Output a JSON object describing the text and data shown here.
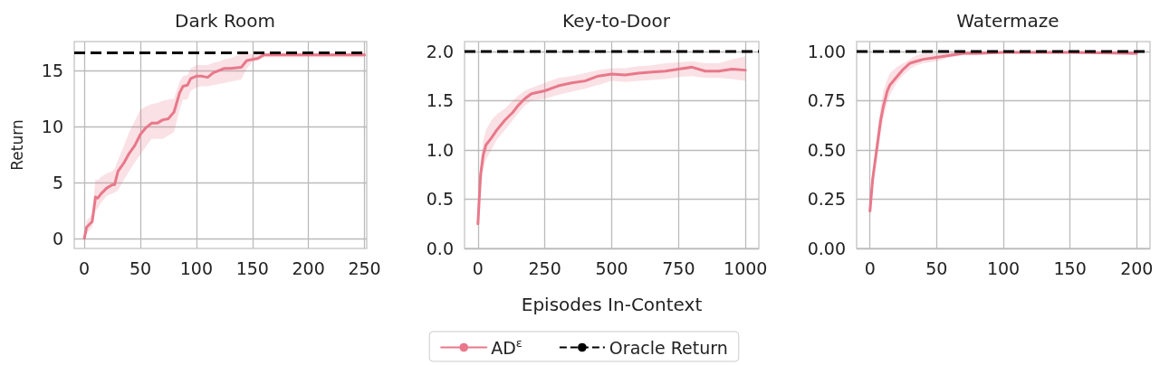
{
  "chart_data": [
    {
      "type": "line",
      "title": "Dark Room",
      "ylabel": "Return",
      "xlim": [
        -9,
        252
      ],
      "xticks": [
        0,
        50,
        100,
        150,
        200,
        250
      ],
      "ylim": [
        -0.9,
        17.6
      ],
      "yticks": [
        0,
        5,
        10,
        15
      ],
      "grid": true,
      "marker": "none",
      "line_style": "solid",
      "series": [
        {
          "color": "#e8788a",
          "x": [
            0,
            2,
            5,
            7,
            10,
            12,
            15,
            20,
            25,
            27,
            30,
            35,
            40,
            45,
            50,
            55,
            60,
            65,
            70,
            75,
            80,
            85,
            88,
            92,
            95,
            100,
            105,
            110,
            115,
            120,
            125,
            130,
            140,
            145,
            150,
            155,
            160,
            170,
            180,
            200,
            220,
            250
          ],
          "values": [
            0,
            1,
            1.3,
            1.5,
            3.7,
            3.6,
            4,
            4.5,
            4.8,
            4.8,
            6,
            6.7,
            7.6,
            8.3,
            9.3,
            9.9,
            10.3,
            10.3,
            10.6,
            10.7,
            11.3,
            13,
            13.6,
            13.7,
            14.3,
            14.5,
            14.5,
            14.4,
            14.8,
            15,
            15.2,
            15.2,
            15.3,
            15.9,
            16,
            16.1,
            16.4,
            16.4,
            16.4,
            16.4,
            16.4,
            16.4
          ],
          "lower": [
            0,
            0.4,
            0.8,
            1,
            2.5,
            2.7,
            3.2,
            3.8,
            4,
            4.1,
            4.3,
            5.2,
            6,
            6.8,
            7.5,
            8.2,
            8.9,
            8.9,
            8.9,
            9.2,
            9.5,
            11.5,
            12.4,
            12.4,
            13.2,
            13.5,
            13.6,
            13.6,
            13.7,
            13.8,
            13.9,
            14,
            14.2,
            15.2,
            15.8,
            15.9,
            16.2,
            16.2,
            16.2,
            16.2,
            16.2,
            16.2
          ],
          "upper": [
            0,
            1.6,
            1.9,
            2.2,
            5.3,
            5.2,
            5.5,
            5.8,
            6,
            6.2,
            7,
            8.2,
            9.5,
            10.5,
            11.5,
            11.8,
            12,
            12.1,
            12.3,
            12.4,
            12.5,
            14,
            14.5,
            14.6,
            15.2,
            15.5,
            15.5,
            15.5,
            15.7,
            15.8,
            16,
            16.1,
            16.5,
            16.6,
            16.4,
            16.5,
            16.6,
            16.6,
            16.6,
            16.6,
            16.6,
            16.6
          ]
        }
      ],
      "ref_lines": [
        {
          "axis": "y",
          "value": 16.6,
          "color": "#000000",
          "line_style": "dashed"
        }
      ]
    },
    {
      "type": "line",
      "title": "Key-to-Door",
      "xlabel": "Episodes In-Context",
      "xlim": [
        -50,
        1050
      ],
      "xticks": [
        0,
        250,
        500,
        750,
        1000
      ],
      "ylim": [
        0,
        2.1
      ],
      "yticks": [
        {
          "value": 0,
          "label": "0.0"
        },
        0.5,
        {
          "value": 1,
          "label": "1.0"
        },
        1.5,
        {
          "value": 2,
          "label": "2.0"
        }
      ],
      "grid": true,
      "marker": "none",
      "line_style": "solid",
      "legend": "bottom",
      "series": [
        {
          "name": "AD$^{ε}$",
          "color": "#e8788a",
          "x": [
            0,
            5,
            10,
            20,
            30,
            50,
            70,
            100,
            130,
            150,
            175,
            200,
            250,
            300,
            350,
            400,
            450,
            500,
            550,
            600,
            650,
            700,
            750,
            800,
            850,
            900,
            950,
            1000
          ],
          "values": [
            0.25,
            0.5,
            0.75,
            0.95,
            1.05,
            1.12,
            1.2,
            1.3,
            1.38,
            1.45,
            1.52,
            1.57,
            1.6,
            1.65,
            1.68,
            1.7,
            1.75,
            1.77,
            1.76,
            1.78,
            1.79,
            1.8,
            1.82,
            1.84,
            1.8,
            1.8,
            1.82,
            1.81
          ],
          "lower": [
            0.2,
            0.45,
            0.6,
            0.8,
            0.9,
            1,
            1.1,
            1.2,
            1.3,
            1.37,
            1.45,
            1.5,
            1.52,
            1.56,
            1.59,
            1.62,
            1.66,
            1.7,
            1.69,
            1.7,
            1.71,
            1.72,
            1.74,
            1.75,
            1.73,
            1.73,
            1.72,
            1.7
          ],
          "upper": [
            0.3,
            0.6,
            0.9,
            1.1,
            1.2,
            1.3,
            1.36,
            1.42,
            1.5,
            1.55,
            1.6,
            1.63,
            1.68,
            1.73,
            1.75,
            1.78,
            1.81,
            1.83,
            1.83,
            1.85,
            1.86,
            1.88,
            1.89,
            1.9,
            1.88,
            1.88,
            1.92,
            1.95
          ]
        }
      ],
      "ref_lines": [
        {
          "axis": "y",
          "value": 2,
          "label": "Oracle Return",
          "color": "#000000",
          "line_style": "dashed"
        }
      ]
    },
    {
      "type": "line",
      "title": "Watermaze",
      "xlim": [
        -10,
        210
      ],
      "xticks": [
        0,
        50,
        100,
        150,
        200
      ],
      "ylim": [
        0,
        1.05
      ],
      "yticks": [
        {
          "value": 0,
          "label": "0.00"
        },
        {
          "value": 0.25,
          "label": "0.25"
        },
        {
          "value": 0.5,
          "label": "0.50"
        },
        {
          "value": 0.75,
          "label": "0.75"
        },
        {
          "value": 1,
          "label": "1.00"
        }
      ],
      "grid": true,
      "marker": "none",
      "line_style": "solid",
      "series": [
        {
          "color": "#e8788a",
          "x": [
            0,
            2,
            5,
            8,
            10,
            13,
            15,
            20,
            25,
            30,
            35,
            40,
            50,
            60,
            70,
            80,
            100,
            150,
            200
          ],
          "values": [
            0.19,
            0.35,
            0.5,
            0.65,
            0.72,
            0.8,
            0.83,
            0.87,
            0.91,
            0.94,
            0.95,
            0.96,
            0.97,
            0.98,
            0.99,
            0.99,
            0.995,
            0.995,
            0.99
          ],
          "lower": [
            0.14,
            0.3,
            0.45,
            0.58,
            0.66,
            0.74,
            0.78,
            0.84,
            0.88,
            0.91,
            0.93,
            0.94,
            0.95,
            0.97,
            0.98,
            0.98,
            0.99,
            0.99,
            0.98
          ],
          "upper": [
            0.24,
            0.4,
            0.56,
            0.72,
            0.8,
            0.86,
            0.89,
            0.92,
            0.94,
            0.96,
            0.98,
            0.99,
            0.99,
            0.995,
            1,
            1,
            1,
            1,
            1
          ]
        }
      ],
      "ref_lines": [
        {
          "axis": "y",
          "value": 1,
          "color": "#000000",
          "line_style": "dashed"
        }
      ]
    }
  ]
}
